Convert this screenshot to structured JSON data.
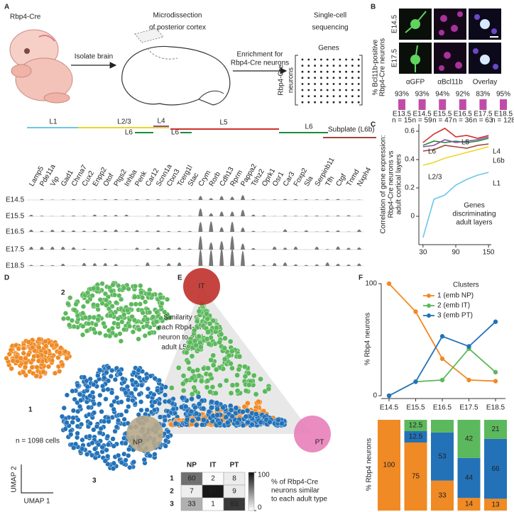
{
  "panel_labels": [
    "A",
    "B",
    "C",
    "D",
    "E",
    "F"
  ],
  "panel_a": {
    "title_left": "Rbp4-Cre",
    "step1": "Isolate brain",
    "title_mid": [
      "Microdissection",
      "of posterior cortex"
    ],
    "step2": [
      "Enrichment for",
      "Rbp4-Cre neurons"
    ],
    "title_right": [
      "Single-cell",
      "sequencing"
    ],
    "matrix_cols": "Genes",
    "matrix_rows": [
      "Rbp4-Cre",
      "neurons"
    ],
    "layers": [
      {
        "name": "L1",
        "color": "#6ec6ea"
      },
      {
        "name": "L2/3",
        "color": "#e8d82a"
      },
      {
        "name": "L4",
        "color": "#8e4fa0"
      },
      {
        "name": "L6",
        "color": "#1f8a3c"
      },
      {
        "name": "L6",
        "color": "#1f8a3c"
      },
      {
        "name": "L5",
        "color": "#d0312d"
      },
      {
        "name": "L6",
        "color": "#1f8a3c"
      },
      {
        "name": "Subplate (L6b)",
        "color": "#a0453a"
      }
    ],
    "genes": [
      "Lamp5",
      "Pde11a",
      "Vip",
      "Gad1",
      "Chrna7",
      "Cux2",
      "Enpp2",
      "Otof",
      "Ptgs2",
      "Inhba",
      "Penk",
      "Car12",
      "Scnn1a",
      "Ctxn3",
      "Tcerg1l",
      "Stac",
      "Crym",
      "Rorb",
      "Cdh13",
      "Rprm",
      "Pappa2",
      "Tshz2",
      "Oprk1",
      "Osr1",
      "Car3",
      "Foxp2",
      "Sla",
      "Serpinb11",
      "Tfh",
      "Ctgf",
      "Tnmd",
      "Nxph4"
    ],
    "stages": [
      "E14.5",
      "E15.5",
      "E16.5",
      "E17.5",
      "E18.5"
    ]
  },
  "panel_b": {
    "rows": [
      "E14.5",
      "E17.5"
    ],
    "cols": [
      "αGFP",
      "αBcl11b",
      "Overlay"
    ],
    "ylabel": [
      "% Bcl11b-positive",
      "Rbp4-Cre neurons"
    ],
    "percent_labels": [
      "93%",
      "93%",
      "94%",
      "92%",
      "83%",
      "95%"
    ],
    "stages": [
      "E13.5",
      "E14.5",
      "E15.5",
      "E16.5",
      "E17.5",
      "E18.5"
    ],
    "n_labels": [
      "n = 15",
      "n = 59",
      "n = 47",
      "n = 36",
      "n = 63",
      "n = 128"
    ],
    "color": "#c04ca8"
  },
  "panel_d": {
    "clusters": [
      "1",
      "2",
      "3"
    ],
    "colors": [
      "#f08a24",
      "#5cb85c",
      "#2372b8"
    ],
    "count": "n = 1098 cells",
    "axis_y": "UMAP 2",
    "axis_x": "UMAP 1"
  },
  "panel_e": {
    "vertices": [
      "IT",
      "NP",
      "PT"
    ],
    "vertex_colors": [
      "#c0302a",
      "#b8a88a",
      "#e87fb8"
    ],
    "text": [
      "Similarity of",
      "each Rbp4-Cre",
      "neuron to each",
      "adult L5 type"
    ],
    "matrix": {
      "cols": [
        "NP",
        "IT",
        "PT"
      ],
      "rows": [
        "1",
        "2",
        "3"
      ],
      "values": [
        [
          60,
          2,
          8
        ],
        [
          7,
          97,
          9
        ],
        [
          33,
          1,
          83
        ]
      ]
    },
    "colorbar_ticks": [
      0,
      100
    ],
    "colorbar_label": [
      "% of Rbp4-Cre",
      "neurons similar",
      "to each adult type"
    ]
  },
  "chart_data": [
    {
      "type": "line",
      "ylabel": [
        "Correlation of gene expression:",
        "Rbp4-Cre neurons vs",
        "adult cortical layers"
      ],
      "annotation": [
        "Genes",
        "discriminating",
        "adult layers"
      ],
      "x": [
        30,
        50,
        70,
        90,
        110,
        130,
        150
      ],
      "xlim": [
        25,
        155
      ],
      "xticks": [
        30,
        90,
        150
      ],
      "ylim": [
        -0.2,
        0.65
      ],
      "yticks": [
        0,
        0.2,
        0.4,
        0.6
      ],
      "series": [
        {
          "name": "L5",
          "color": "#d0312d",
          "values": [
            0.52,
            0.58,
            0.62,
            0.56,
            0.57,
            0.55,
            0.57
          ]
        },
        {
          "name": "L6",
          "color": "#1f8a3c",
          "values": [
            0.5,
            0.53,
            0.52,
            0.53,
            0.52,
            0.53,
            0.55
          ]
        },
        {
          "name": "L4",
          "color": "#8e4fa0",
          "values": [
            0.49,
            0.5,
            0.54,
            0.52,
            0.53,
            0.54,
            0.56
          ]
        },
        {
          "name": "L6b",
          "color": "#a0453a",
          "values": [
            0.46,
            0.47,
            0.5,
            0.49,
            0.48,
            0.5,
            0.51
          ]
        },
        {
          "name": "L2/3",
          "color": "#e8d82a",
          "values": [
            0.36,
            0.38,
            0.41,
            0.43,
            0.45,
            0.47,
            0.49
          ]
        },
        {
          "name": "L1",
          "color": "#6ec6ea",
          "values": [
            -0.15,
            0.12,
            0.15,
            0.22,
            0.26,
            0.29,
            0.31
          ]
        }
      ]
    },
    {
      "type": "line",
      "ylabel": "% Rbp4 neurons",
      "legend_title": "Clusters",
      "categories": [
        "E14.5",
        "E15.5",
        "E16.5",
        "E17.5",
        "E18.5"
      ],
      "ylim": [
        0,
        100
      ],
      "yticks": [
        0,
        100
      ],
      "series": [
        {
          "name": "1 (emb NP)",
          "color": "#f08a24",
          "values": [
            100,
            75,
            33,
            14,
            13
          ]
        },
        {
          "name": "2 (emb IT)",
          "color": "#5cb85c",
          "values": [
            0,
            12.5,
            14,
            42,
            21
          ]
        },
        {
          "name": "3 (emb PT)",
          "color": "#2372b8",
          "values": [
            0,
            12.5,
            53,
            44,
            66
          ]
        }
      ]
    },
    {
      "type": "stacked_bar",
      "ylabel": "% Rbp4 neurons",
      "ylim": [
        0,
        100
      ],
      "series": [
        {
          "color": "#f08a24",
          "values": [
            100,
            75,
            33,
            14,
            13
          ],
          "value_labels": [
            "100",
            "75",
            "33",
            "14",
            "13"
          ]
        },
        {
          "color": "#5cb85c",
          "values": [
            0,
            12.5,
            14,
            42,
            21
          ],
          "value_labels": [
            null,
            "12.5",
            null,
            "42",
            "21"
          ]
        },
        {
          "color": "#2372b8",
          "values": [
            0,
            12.5,
            53,
            44,
            66
          ],
          "value_labels": [
            null,
            "12.5",
            "53",
            "44",
            "66"
          ]
        }
      ]
    }
  ]
}
